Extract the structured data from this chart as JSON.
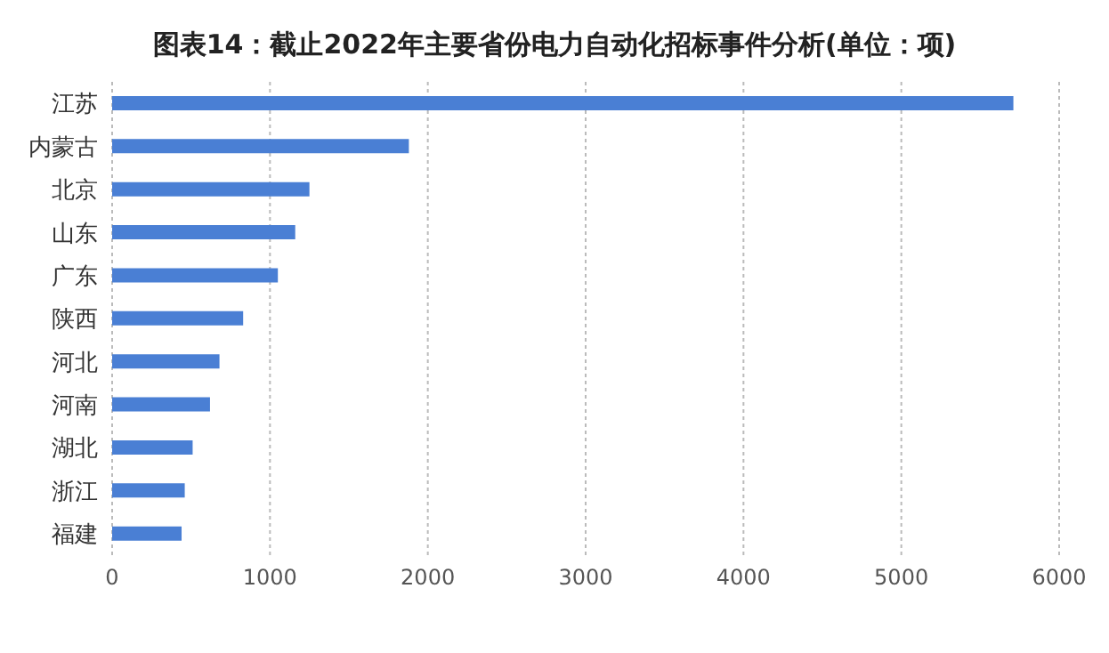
{
  "chart_data": {
    "type": "bar",
    "orientation": "horizontal",
    "title": "图表14：截止2022年主要省份电力自动化招标事件分析(单位：项)",
    "categories": [
      "江苏",
      "内蒙古",
      "北京",
      "山东",
      "广东",
      "陕西",
      "河北",
      "河南",
      "湖北",
      "浙江",
      "福建"
    ],
    "values": [
      5710,
      1880,
      1250,
      1160,
      1050,
      830,
      680,
      620,
      510,
      460,
      440
    ],
    "color": "#4a7fd4",
    "xlim": [
      0,
      6000
    ],
    "xticks": [
      0,
      1000,
      2000,
      3000,
      4000,
      5000,
      6000
    ],
    "grid": "x"
  }
}
